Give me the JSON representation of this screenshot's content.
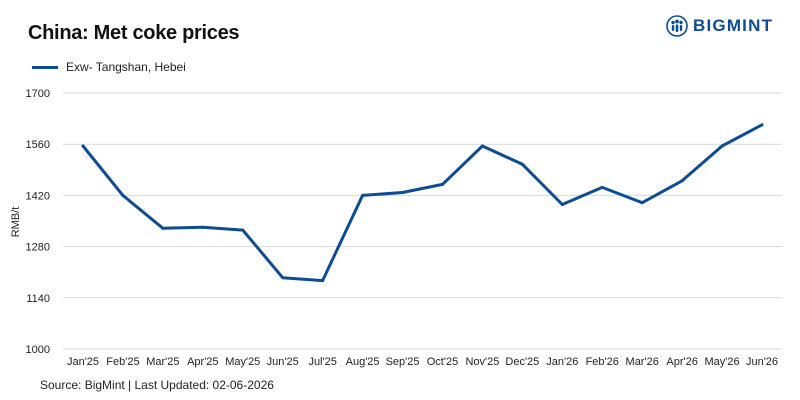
{
  "header": {
    "title": "China: Met coke prices",
    "brand_name": "BIGMINT",
    "brand_icon": "people-logo-icon"
  },
  "footer": {
    "source": "Source: BigMint | Last Updated: 02-06-2026"
  },
  "colors": {
    "series": "#0d4c92",
    "grid": "#d9d9d9",
    "brand": "#0d4c92"
  },
  "chart_data": {
    "type": "line",
    "title": "China: Met coke prices",
    "xlabel": "",
    "ylabel": "RMB/t",
    "ylim": [
      1000,
      1700
    ],
    "yticks": [
      1000,
      1140,
      1280,
      1420,
      1560,
      1700
    ],
    "grid": true,
    "legend_position": "top-left",
    "categories": [
      "Jan'25",
      "Feb'25",
      "Mar'25",
      "Apr'25",
      "May'25",
      "Jun'25",
      "Jul'25",
      "Aug'25",
      "Sep'25",
      "Oct'25",
      "Nov'25",
      "Dec'25",
      "Jan'26",
      "Feb'26",
      "Mar'26",
      "Apr'26",
      "May'26",
      "Jun'26"
    ],
    "series": [
      {
        "name": "Exw- Tangshan, Hebei",
        "values": [
          1555,
          1420,
          1330,
          1333,
          1325,
          1195,
          1187,
          1420,
          1428,
          1450,
          1555,
          1505,
          1395,
          1442,
          1400,
          1460,
          1555,
          1613
        ]
      }
    ]
  }
}
